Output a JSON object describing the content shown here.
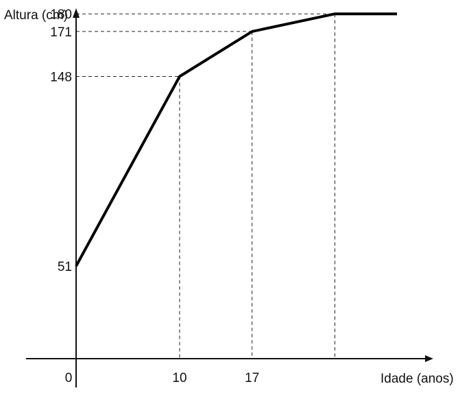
{
  "chart_data": {
    "type": "line",
    "xlabel": "Idade (anos)",
    "ylabel": "Altura (cm)",
    "x_ticks": [
      "0",
      "10",
      "17"
    ],
    "y_ticks": [
      "51",
      "148",
      "171",
      "180"
    ],
    "series": [
      {
        "points": [
          {
            "x": 0,
            "y": 51
          },
          {
            "x": 10,
            "y": 148
          },
          {
            "x": 17,
            "y": 171
          },
          {
            "x": 25,
            "y": 180
          },
          {
            "x": 31,
            "y": 180
          }
        ]
      }
    ],
    "reference_lines": [
      {
        "x": 10,
        "y": 148
      },
      {
        "x": 17,
        "y": 171
      },
      {
        "x": 25,
        "y": 180
      }
    ],
    "grid": false
  }
}
